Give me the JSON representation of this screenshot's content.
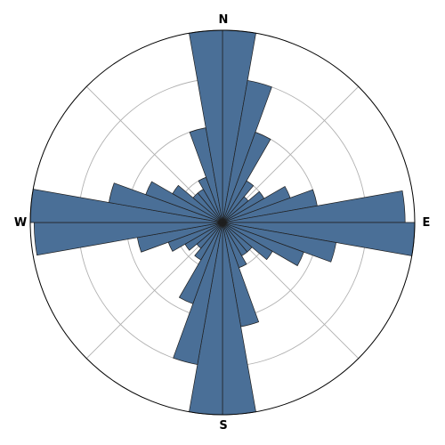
{
  "chart_data": {
    "type": "rose",
    "title": "",
    "direction_labels": {
      "n": "N",
      "e": "E",
      "s": "S",
      "w": "W"
    },
    "sector_width_deg": 10,
    "sector_centers_deg": [
      5,
      15,
      25,
      35,
      45,
      55,
      65,
      75,
      85,
      95,
      105,
      115,
      125,
      135,
      145,
      155,
      165,
      175,
      185,
      195,
      205,
      215,
      225,
      235,
      245,
      255,
      265,
      275,
      285,
      295,
      305,
      315,
      325,
      335,
      345,
      355
    ],
    "values": [
      10.0,
      7.5,
      5.0,
      2.5,
      1.75,
      2.5,
      3.75,
      5.0,
      9.5,
      10.0,
      6.0,
      4.5,
      3.0,
      2.0,
      2.0,
      2.5,
      5.5,
      10.0,
      10.0,
      7.5,
      4.5,
      2.25,
      1.75,
      2.25,
      3.0,
      4.5,
      9.8,
      10.0,
      6.0,
      4.25,
      3.0,
      2.0,
      2.0,
      2.5,
      5.0,
      10.0
    ],
    "r_max": 10.0,
    "r_gridlines": [
      2.5,
      5.0,
      7.5
    ],
    "theta_gridlines_deg": [
      0,
      45,
      90,
      135,
      180,
      225,
      270,
      315
    ],
    "theta_zero": "north",
    "theta_direction": "clockwise",
    "bar_color": "#4a6f97",
    "bar_edge_color": "#1f1f1f",
    "grid_color": "#b0b0b0"
  }
}
